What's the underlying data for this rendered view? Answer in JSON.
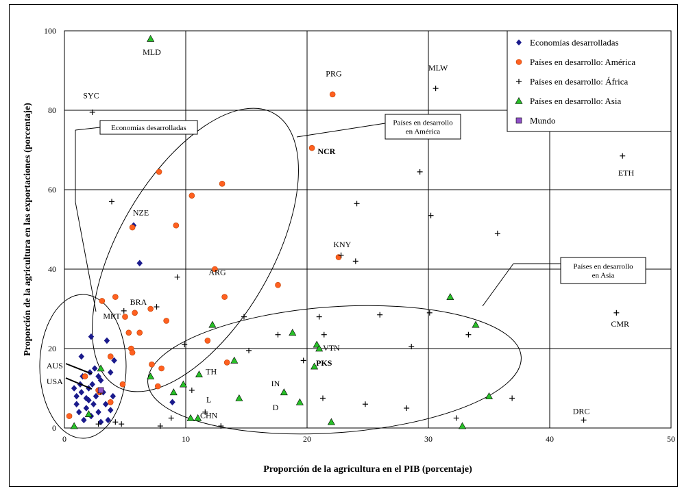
{
  "chart_data": {
    "type": "scatter",
    "xlabel": "Proporción de la agricultura en el PIB (porcentaje)",
    "ylabel": "Proporción de la agricultura en las exportaciones (porcentaje)",
    "xlim": [
      0,
      50
    ],
    "ylim": [
      0,
      100
    ],
    "xticks": [
      "0",
      "10",
      "20",
      "30",
      "40",
      "50"
    ],
    "yticks": [
      "0",
      "20",
      "40",
      "60",
      "80",
      "100"
    ],
    "grid": true,
    "legend_position": "top-right",
    "series": [
      {
        "name": "Economías desarrolladas",
        "marker": "diamond",
        "color": "#1a1a8c",
        "points": [
          [
            0.8,
            10
          ],
          [
            1,
            6
          ],
          [
            1,
            8
          ],
          [
            1.2,
            4
          ],
          [
            1.3,
            11
          ],
          [
            1.4,
            9
          ],
          [
            1.5,
            13
          ],
          [
            1.6,
            2
          ],
          [
            1.8,
            5
          ],
          [
            2,
            7
          ],
          [
            2,
            10
          ],
          [
            2.2,
            3
          ],
          [
            2.3,
            11
          ],
          [
            2.4,
            6
          ],
          [
            2.5,
            15
          ],
          [
            2.6,
            8
          ],
          [
            2.8,
            4
          ],
          [
            3,
            12
          ],
          [
            3,
            1.5
          ],
          [
            3.2,
            9
          ],
          [
            3.4,
            6
          ],
          [
            3.6,
            2
          ],
          [
            3.8,
            14
          ],
          [
            4,
            8
          ],
          [
            4.1,
            17
          ],
          [
            2.2,
            23
          ],
          [
            3.5,
            22
          ],
          [
            2.1,
            14
          ],
          [
            1.4,
            18
          ],
          [
            5.7,
            51
          ],
          [
            6.2,
            41.5
          ],
          [
            8.9,
            6.5
          ],
          [
            2.8,
            13
          ],
          [
            3.8,
            4.5
          ],
          [
            1.8,
            7.5
          ]
        ]
      },
      {
        "name": "Países en desarrollo: América",
        "marker": "circle",
        "color": "#ff6020",
        "points": [
          [
            0.4,
            3
          ],
          [
            1.7,
            13
          ],
          [
            2.9,
            9
          ],
          [
            3.1,
            32
          ],
          [
            3.8,
            18
          ],
          [
            4.2,
            33
          ],
          [
            4.8,
            11
          ],
          [
            5,
            28
          ],
          [
            5.3,
            24
          ],
          [
            5.5,
            20
          ],
          [
            5.6,
            19
          ],
          [
            5.8,
            29
          ],
          [
            6.2,
            24
          ],
          [
            7.1,
            30
          ],
          [
            7.2,
            16
          ],
          [
            7.7,
            10.5
          ],
          [
            7.8,
            64.5
          ],
          [
            8,
            15
          ],
          [
            8.4,
            27
          ],
          [
            9.2,
            51
          ],
          [
            10.5,
            58.5
          ],
          [
            11.8,
            22
          ],
          [
            12.4,
            40
          ],
          [
            13,
            61.5
          ],
          [
            13.2,
            33
          ],
          [
            13.4,
            16.5
          ],
          [
            17.6,
            36
          ],
          [
            20.4,
            70.5
          ],
          [
            22.1,
            84
          ],
          [
            22.6,
            43
          ],
          [
            5.6,
            50.5
          ],
          [
            3.8,
            6.5
          ],
          [
            2.8,
            9.5
          ]
        ]
      },
      {
        "name": "Países en desarrollo: África",
        "marker": "plus",
        "color": "#000000",
        "points": [
          [
            2.3,
            79.5
          ],
          [
            3.9,
            57
          ],
          [
            4.9,
            29.5
          ],
          [
            7.6,
            30.5
          ],
          [
            9.3,
            38
          ],
          [
            9.9,
            21
          ],
          [
            10.5,
            9.5
          ],
          [
            11.6,
            4
          ],
          [
            12.9,
            0.5
          ],
          [
            14.8,
            28
          ],
          [
            15.2,
            19.5
          ],
          [
            17.6,
            23.5
          ],
          [
            19.7,
            17
          ],
          [
            21,
            28
          ],
          [
            21.3,
            7.5
          ],
          [
            21.4,
            23.5
          ],
          [
            22.8,
            43.5
          ],
          [
            24,
            42
          ],
          [
            24.1,
            56.5
          ],
          [
            24.8,
            6
          ],
          [
            26,
            28.5
          ],
          [
            28.2,
            5
          ],
          [
            28.6,
            20.5
          ],
          [
            29.3,
            64.5
          ],
          [
            30.1,
            29
          ],
          [
            30.2,
            53.5
          ],
          [
            30.6,
            85.5
          ],
          [
            32.3,
            2.5
          ],
          [
            33.3,
            23.5
          ],
          [
            35.7,
            49
          ],
          [
            36.9,
            7.5
          ],
          [
            42.8,
            2
          ],
          [
            45.5,
            29
          ],
          [
            46,
            68.5
          ],
          [
            2.8,
            1
          ],
          [
            4.2,
            1.5
          ],
          [
            4.7,
            1
          ],
          [
            7.9,
            0.5
          ],
          [
            8.8,
            2.5
          ],
          [
            3,
            9
          ]
        ]
      },
      {
        "name": "Países en desarrollo: Asia",
        "marker": "triangle",
        "color": "#28c028",
        "points": [
          [
            0.8,
            0.5
          ],
          [
            2,
            3.5
          ],
          [
            3,
            15
          ],
          [
            7.1,
            98
          ],
          [
            7.1,
            13
          ],
          [
            9,
            9
          ],
          [
            9.8,
            11
          ],
          [
            10.4,
            2.5
          ],
          [
            11,
            2.5
          ],
          [
            11.1,
            13.5
          ],
          [
            12.2,
            26
          ],
          [
            14,
            17
          ],
          [
            14.4,
            7.5
          ],
          [
            18.1,
            9
          ],
          [
            18.8,
            24
          ],
          [
            19.4,
            6.5
          ],
          [
            20.6,
            15.5
          ],
          [
            20.8,
            21
          ],
          [
            21,
            20
          ],
          [
            22,
            1.5
          ],
          [
            31.8,
            33
          ],
          [
            32.8,
            0.5
          ],
          [
            33.9,
            26
          ],
          [
            35,
            8
          ]
        ]
      },
      {
        "name": "Mundo",
        "marker": "square",
        "color": "#9050c8",
        "points": [
          [
            3,
            9.5
          ]
        ]
      }
    ],
    "point_labels": [
      {
        "text": "MLD",
        "x": 7.2,
        "y": 94,
        "bold": false
      },
      {
        "text": "SYC",
        "x": 2.2,
        "y": 83,
        "bold": false
      },
      {
        "text": "PRG",
        "x": 22.2,
        "y": 88.5,
        "bold": false
      },
      {
        "text": "MLW",
        "x": 30.8,
        "y": 90,
        "bold": false
      },
      {
        "text": "NCR",
        "x": 21.6,
        "y": 69,
        "bold": true
      },
      {
        "text": "ETH",
        "x": 46.3,
        "y": 63.5,
        "bold": false
      },
      {
        "text": "NZE",
        "x": 6.3,
        "y": 53.5,
        "bold": false
      },
      {
        "text": "KNY",
        "x": 22.9,
        "y": 45.5,
        "bold": false
      },
      {
        "text": "ARG",
        "x": 12.6,
        "y": 38.5,
        "bold": false
      },
      {
        "text": "BRA",
        "x": 6.1,
        "y": 31,
        "bold": false
      },
      {
        "text": "MRT",
        "x": 3.9,
        "y": 27.5,
        "bold": false
      },
      {
        "text": "CMR",
        "x": 45.8,
        "y": 25.5,
        "bold": false
      },
      {
        "text": "VTN",
        "x": 22,
        "y": 19.5,
        "bold": false
      },
      {
        "text": "PKS",
        "x": 21.4,
        "y": 15.7,
        "bold": true
      },
      {
        "text": "TH",
        "x": 12.1,
        "y": 13.5,
        "bold": false
      },
      {
        "text": "IN",
        "x": 17.4,
        "y": 10.5,
        "bold": false
      },
      {
        "text": "L",
        "x": 11.9,
        "y": 6.5,
        "bold": false
      },
      {
        "text": "D",
        "x": 17.4,
        "y": 4.5,
        "bold": false
      },
      {
        "text": "CHN",
        "x": 11.9,
        "y": 2.5,
        "bold": false
      },
      {
        "text": "DRC",
        "x": 42.6,
        "y": 3.5,
        "bold": false
      },
      {
        "text": "AUS",
        "x": -0.8,
        "y": 15,
        "bold": false
      },
      {
        "text": "USA",
        "x": -0.8,
        "y": 11,
        "bold": false
      }
    ],
    "annotations": [
      {
        "text_lines": [
          "Economías desarrolladas"
        ]
      },
      {
        "text_lines": [
          "Países en desarrollo",
          "en América"
        ]
      },
      {
        "text_lines": [
          "Países en desarrollo",
          "en Asia"
        ]
      }
    ]
  }
}
